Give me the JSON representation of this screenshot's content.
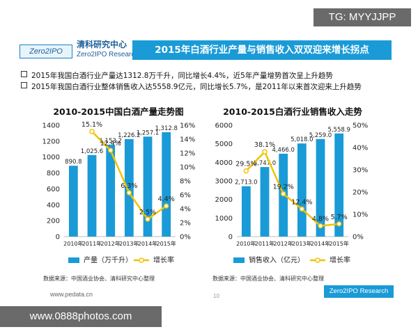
{
  "badge": "TG: MYYJJPP",
  "logo": {
    "mark": "Zero2IPO",
    "name_cn": "清科研究中心",
    "name_en": "Zero2IPO Research"
  },
  "title": "2015年白酒行业产量与销售收入双双迎来增长拐点",
  "bullets": [
    "2015年我国白酒行业产量达1312.8万千升，同比增长4.4%，近5年产量增势首次呈上升趋势",
    "2015年我国白酒行业整体销售收入达5558.9亿元，同比增长5.7%，是2011年以来首次迎来上升趋势"
  ],
  "footer": {
    "url": "www.pedata.cn",
    "page": "10",
    "brand": "Zero2IPO Research"
  },
  "watermark": "www.0888photos.com",
  "colors": {
    "bar": "#1a9bd7",
    "line": "#f2c200",
    "title_bg": "#1a9bd7"
  },
  "chart_data": [
    {
      "type": "bar",
      "title": "2010-2015中国白酒产量走势图",
      "categories": [
        "2010年",
        "2011年",
        "2012年",
        "2013年",
        "2014年",
        "2015年"
      ],
      "series": [
        {
          "name": "产量（万千升）",
          "axis": "left",
          "values": [
            890.8,
            1025.6,
            1153.2,
            1226.2,
            1257.1,
            1312.8
          ],
          "labels": [
            "890.8",
            "1,025.6",
            "1,153.2",
            "1,226.2",
            "1,257.1",
            "1,312.8"
          ]
        },
        {
          "name": "增长率",
          "axis": "right",
          "type": "line",
          "values": [
            null,
            15.1,
            12.4,
            6.3,
            2.5,
            4.4
          ],
          "labels": [
            "",
            "15.1%",
            "12.4%",
            "6.3%",
            "2.5%",
            "4.4%"
          ]
        }
      ],
      "ylim": [
        0,
        1400
      ],
      "yticks": [
        "0",
        "200",
        "400",
        "600",
        "800",
        "1000",
        "1200",
        "1400"
      ],
      "y2lim": [
        0,
        16
      ],
      "y2ticks": [
        "0%",
        "2%",
        "4%",
        "6%",
        "8%",
        "10%",
        "12%",
        "14%",
        "16%"
      ],
      "legend": "bottom",
      "source": "数据来源：中国酒业协会、清科研究中心整理"
    },
    {
      "type": "bar",
      "title": "2010-2015白酒行业销售收入走势",
      "categories": [
        "2010年",
        "2011年",
        "2012年",
        "2013年",
        "2014年",
        "2015年"
      ],
      "series": [
        {
          "name": "销售收入（亿元）",
          "axis": "left",
          "values": [
            2713.0,
            3747.0,
            4466.0,
            5018.0,
            5259.0,
            5558.9
          ],
          "labels": [
            "2,713.0",
            "3,747.0",
            "4,466.0",
            "5,018.0",
            "5,259.0",
            "5,558.9"
          ]
        },
        {
          "name": "增长率",
          "axis": "right",
          "type": "line",
          "values": [
            29.5,
            38.1,
            19.2,
            12.4,
            4.8,
            5.7
          ],
          "labels": [
            "29.5%",
            "38.1%",
            "19.2%",
            "12.4%",
            "4.8%",
            "5.7%"
          ]
        }
      ],
      "ylim": [
        0,
        6000
      ],
      "yticks": [
        "0",
        "1000",
        "2000",
        "3000",
        "4000",
        "5000",
        "6000"
      ],
      "y2lim": [
        0,
        50
      ],
      "y2ticks": [
        "0%",
        "10%",
        "20%",
        "30%",
        "40%",
        "50%"
      ],
      "legend": "bottom",
      "source": "数据来源：中国酒业协会、清科研究中心整理"
    }
  ]
}
